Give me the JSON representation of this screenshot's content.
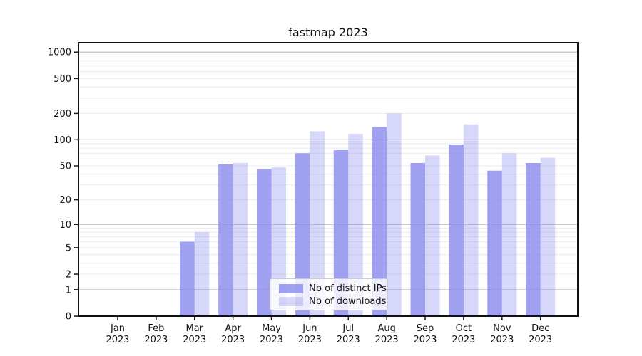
{
  "chart_data": {
    "type": "bar",
    "title": "fastmap 2023",
    "categories": [
      "Jan",
      "Feb",
      "Mar",
      "Apr",
      "May",
      "Jun",
      "Jul",
      "Aug",
      "Sep",
      "Oct",
      "Nov",
      "Dec"
    ],
    "category_year": "2023",
    "series": [
      {
        "name": "Nb of distinct IPs",
        "color": "rgba(134,134,238,0.78)",
        "approx_hex_on_white": "#a3a3f0",
        "values": [
          0,
          0,
          6,
          52,
          46,
          70,
          76,
          140,
          54,
          88,
          44,
          54
        ]
      },
      {
        "name": "Nb of downloads",
        "color": "rgba(134,134,238,0.33)",
        "approx_hex_on_white": "#d7d7f6",
        "values": [
          0,
          0,
          8,
          54,
          48,
          125,
          117,
          200,
          66,
          150,
          70,
          62
        ]
      }
    ],
    "xlabel": "",
    "ylabel": "",
    "y_axis": {
      "scale": "symlog (y proportional to ln(1+value))",
      "ticks": [
        0,
        1,
        2,
        5,
        10,
        20,
        50,
        100,
        200,
        500,
        1000
      ],
      "ylim": [
        0,
        1280
      ]
    },
    "grid": {
      "major_color": "#c3c3c3",
      "minor_color": "#ebebeb",
      "major_at": [
        1,
        10,
        100,
        1000
      ]
    },
    "legend_position": "lower center",
    "spine_color": "#111111",
    "background": "#ffffff"
  }
}
